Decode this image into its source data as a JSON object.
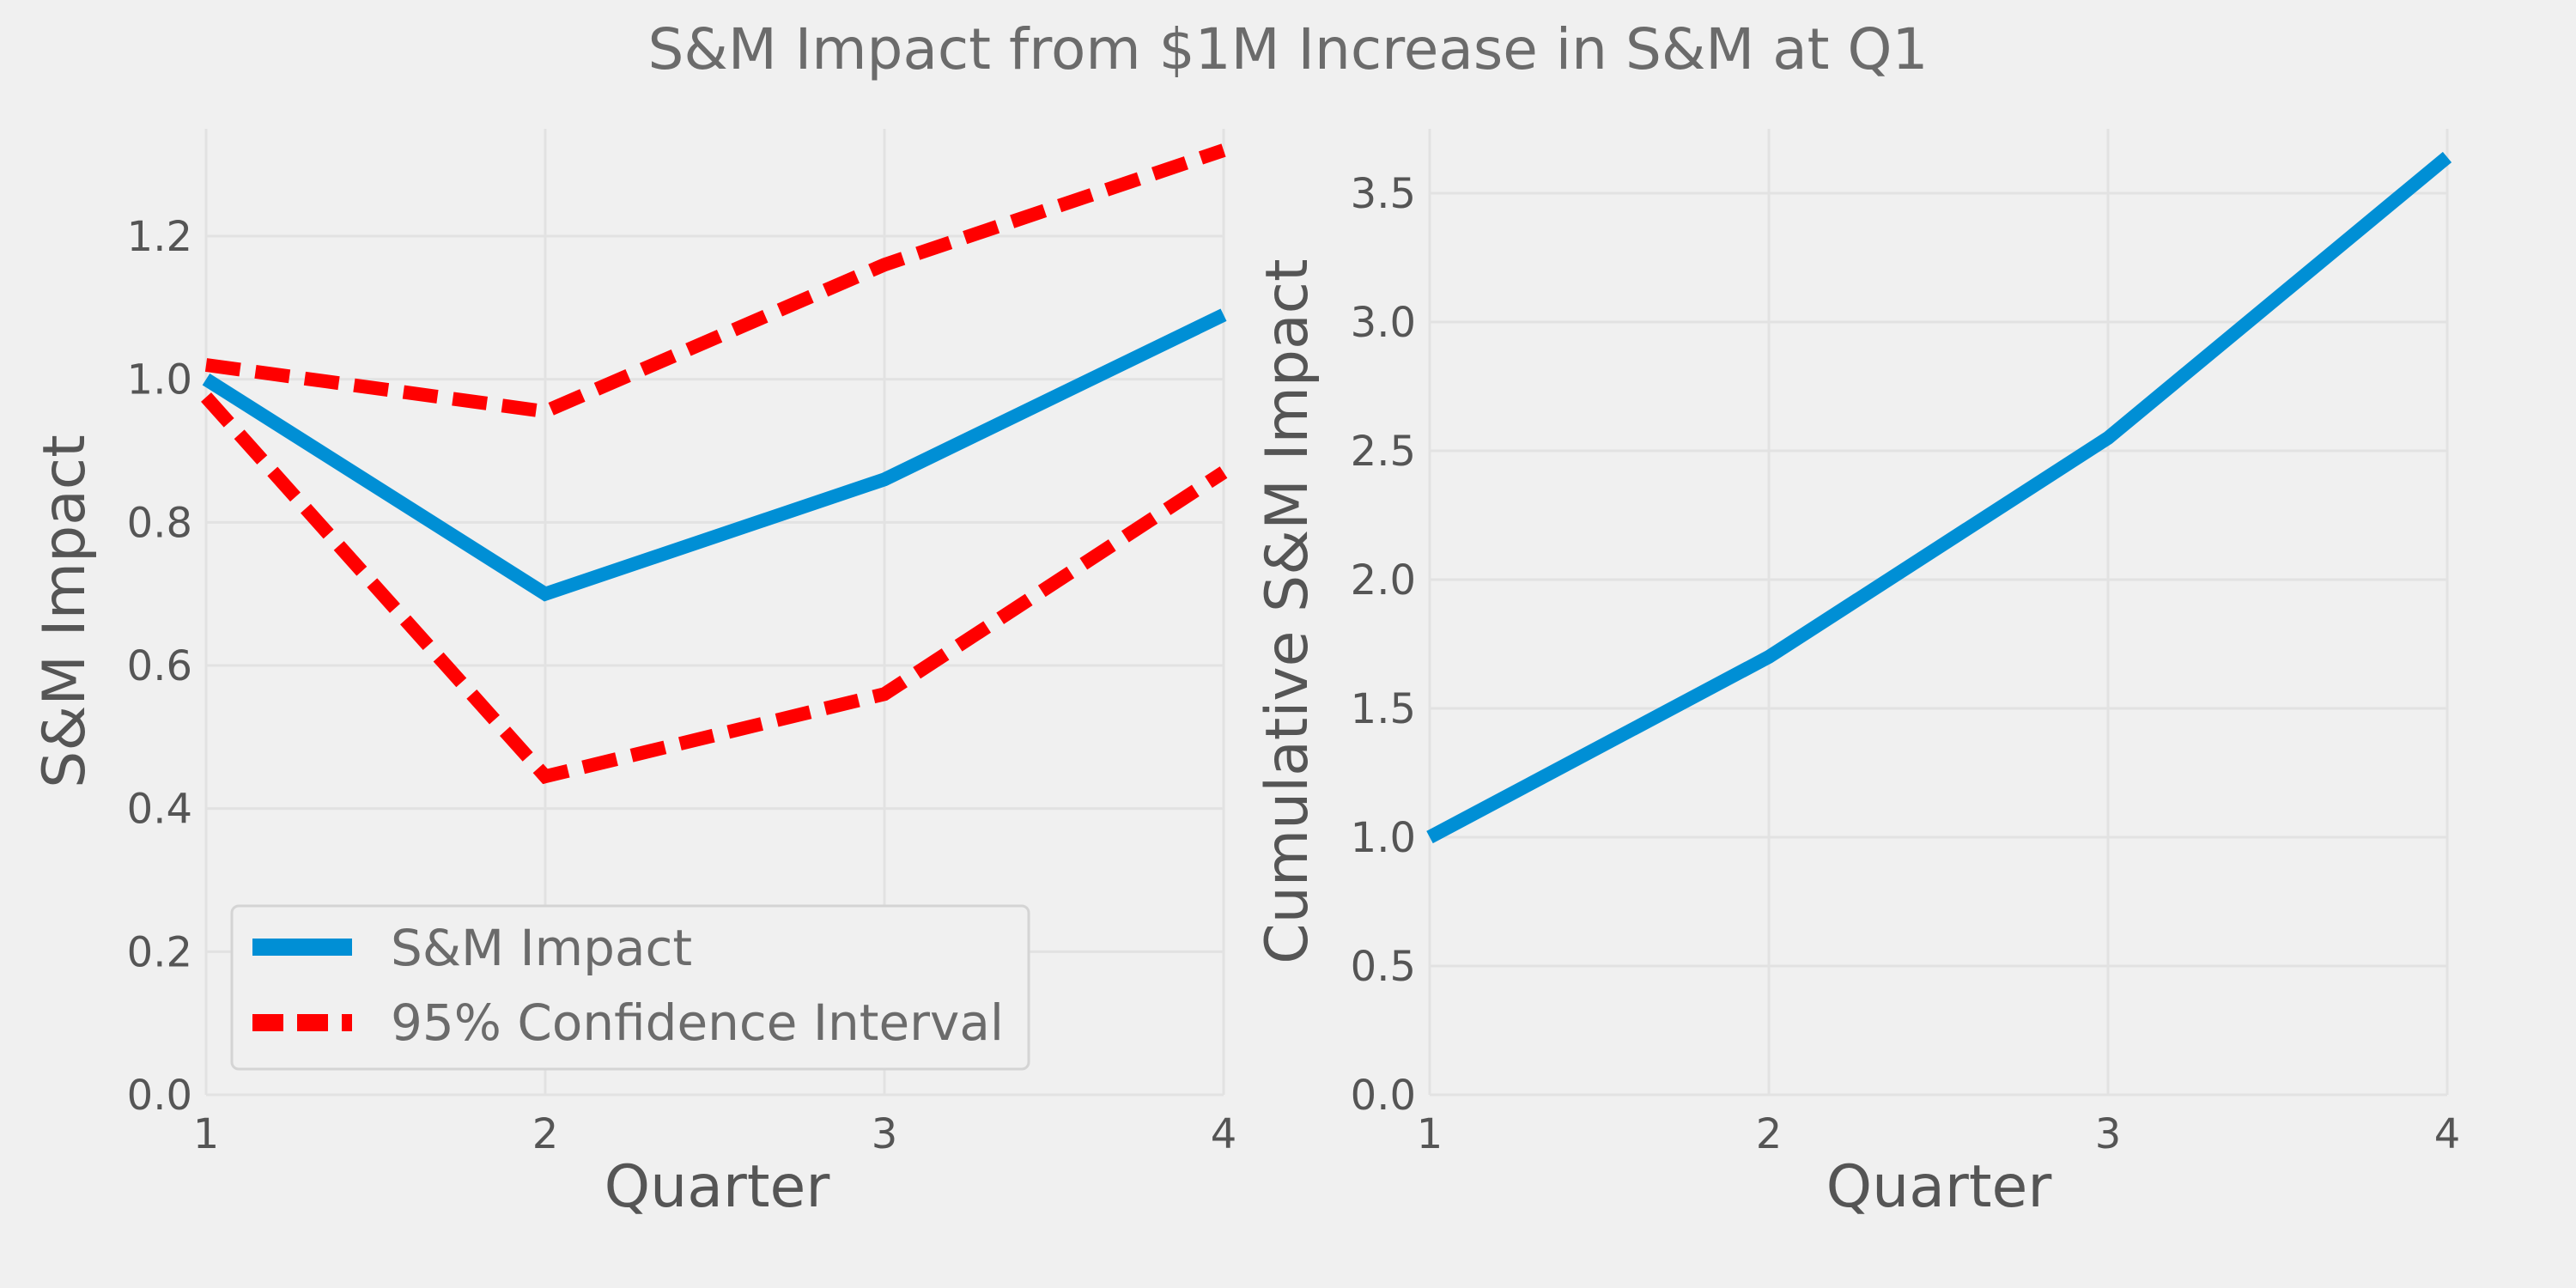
{
  "figure": {
    "title": "S&M Impact from $1M Increase in S&M at Q1",
    "background": "#f0f0f0"
  },
  "chart_data": [
    {
      "type": "line",
      "x": [
        1,
        2,
        3,
        4
      ],
      "xlabel": "Quarter",
      "ylabel": "S&M Impact",
      "xlim": [
        1,
        4
      ],
      "ylim": [
        0,
        1.35
      ],
      "xticks": [
        "1",
        "2",
        "3",
        "4"
      ],
      "yticks": [
        "0.0",
        "0.2",
        "0.4",
        "0.6",
        "0.8",
        "1.0",
        "1.2"
      ],
      "grid": true,
      "legend_position": "lower-left",
      "series": [
        {
          "name": "S&M Impact",
          "values": [
            1.0,
            0.7,
            0.86,
            1.09
          ],
          "color": "#008fd5",
          "style": "solid"
        },
        {
          "name": "95% Confidence Interval",
          "values": [
            1.02,
            0.955,
            1.16,
            1.32
          ],
          "color": "#ff0000",
          "style": "dashed"
        },
        {
          "values": [
            0.975,
            0.445,
            0.56,
            0.87
          ],
          "color": "#ff0000",
          "style": "dashed"
        }
      ]
    },
    {
      "type": "line",
      "x": [
        1,
        2,
        3,
        4
      ],
      "xlabel": "Quarter",
      "ylabel": "Cumulative S&M Impact",
      "xlim": [
        1,
        4
      ],
      "ylim": [
        0,
        3.75
      ],
      "xticks": [
        "1",
        "2",
        "3",
        "4"
      ],
      "yticks": [
        "0.0",
        "0.5",
        "1.0",
        "1.5",
        "2.0",
        "2.5",
        "3.0",
        "3.5"
      ],
      "grid": true,
      "series": [
        {
          "values": [
            1.0,
            1.7,
            2.55,
            3.64
          ],
          "color": "#008fd5",
          "style": "solid"
        }
      ]
    }
  ]
}
